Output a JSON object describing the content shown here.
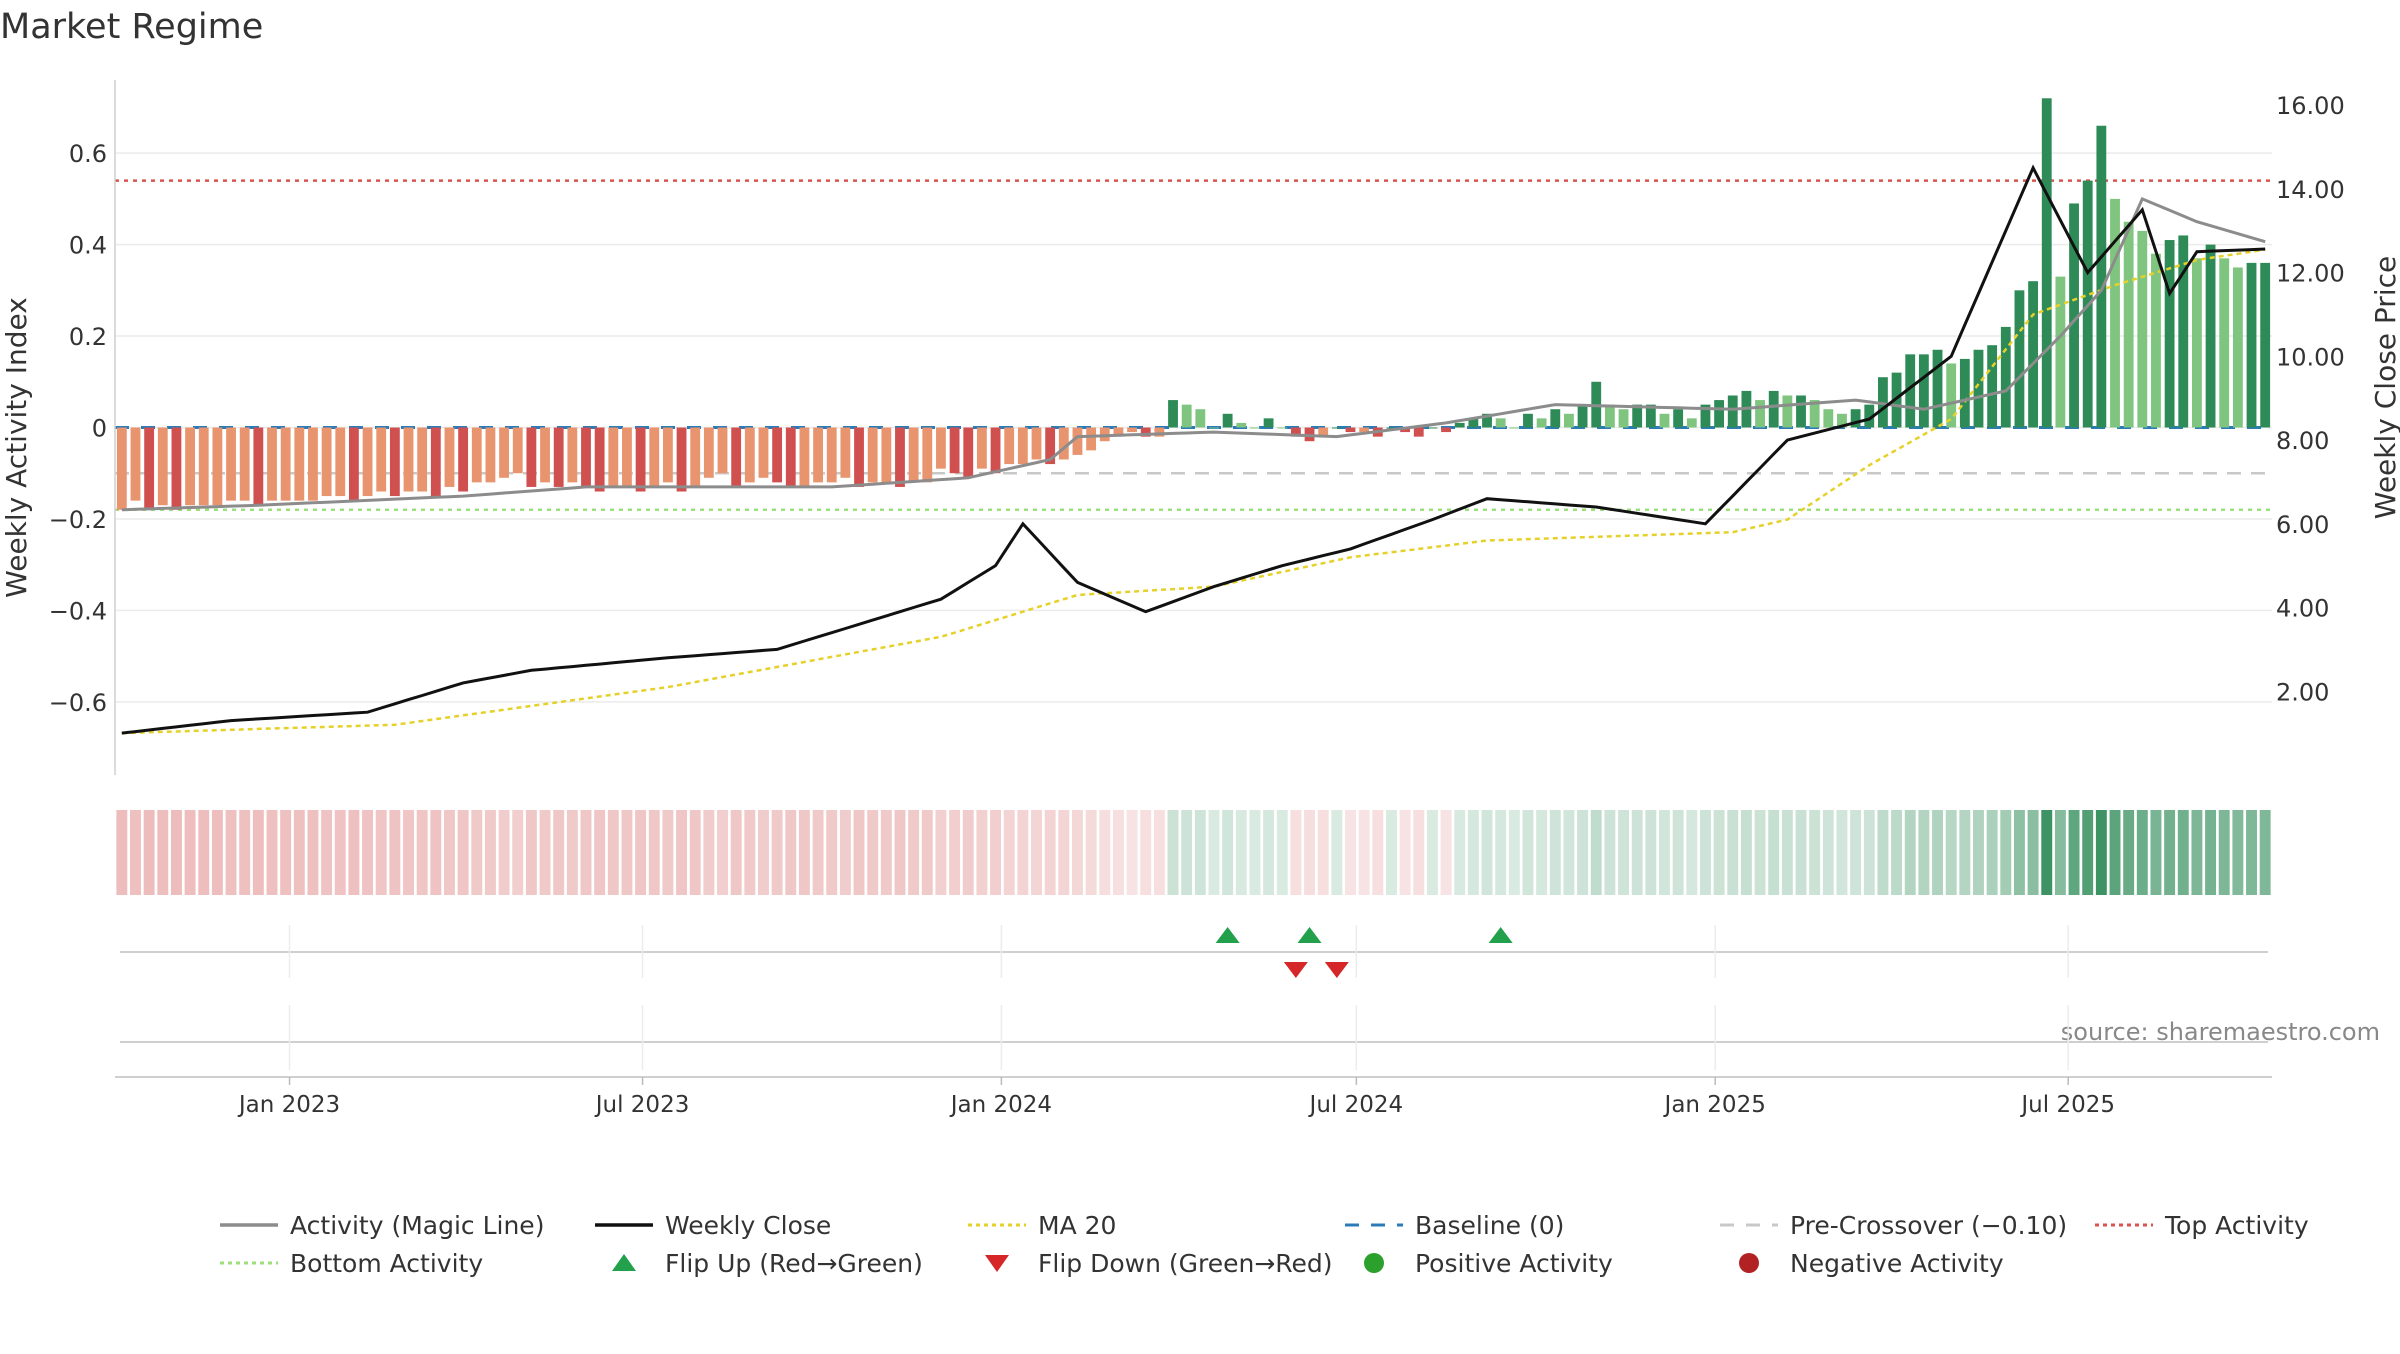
{
  "title": "Market Regime",
  "source_label": "source: sharemaestro.com",
  "colors": {
    "activity_line": "#8c8c8c",
    "close_line": "#111111",
    "ma_line": "#e6d12a",
    "baseline": "#2b7bb9",
    "pre_crossover": "#c8c8c8",
    "top_activity": "#d9534f",
    "bottom_activity": "#9be07a",
    "neg_dark": "#d05050",
    "neg_light": "#e8956f",
    "pos_dark": "#2e8b57",
    "pos_light": "#7fc47f",
    "flip_up": "#22a04b",
    "flip_down": "#d62728",
    "pos_dot": "#2ca02c",
    "neg_dot": "#b22222"
  },
  "chart_data": {
    "type": "bar+line",
    "title": "Market Regime",
    "xlabel": "",
    "ylabel_left": "Weekly Activity Index",
    "ylabel_right": "Weekly Close Price",
    "x_start": "2022-10-07",
    "x_step": "weekly",
    "x_ticks": [
      "Jan 2023",
      "Jul 2023",
      "Jan 2024",
      "Jul 2024",
      "Jan 2025",
      "Jul 2025"
    ],
    "x_tick_dates": [
      "2023-01-01",
      "2023-07-01",
      "2024-01-01",
      "2024-07-01",
      "2025-01-01",
      "2025-07-01"
    ],
    "ylim_left": [
      -0.76,
      0.76
    ],
    "yticks_left": [
      -0.6,
      -0.4,
      -0.2,
      0,
      0.2,
      0.4,
      0.6
    ],
    "ytick_labels_left": [
      "−0.6",
      "−0.4",
      "−0.2",
      "0",
      "0.2",
      "0.4",
      "0.6"
    ],
    "ylim_right": [
      0.0,
      16.6
    ],
    "yticks_right": [
      2,
      4,
      6,
      8,
      10,
      12,
      14,
      16
    ],
    "ytick_labels_right": [
      "2.00",
      "4.00",
      "6.00",
      "8.00",
      "10.00",
      "12.00",
      "14.00",
      "16.00"
    ],
    "reference_lines": {
      "baseline": 0,
      "pre_crossover": -0.1,
      "top_activity": 0.54,
      "bottom_activity": -0.18
    },
    "activity_anchors": [
      [
        0,
        -0.18
      ],
      [
        10,
        -0.17
      ],
      [
        25,
        -0.15
      ],
      [
        34,
        -0.13
      ],
      [
        52,
        -0.13
      ],
      [
        62,
        -0.11
      ],
      [
        68,
        -0.07
      ],
      [
        70,
        -0.02
      ],
      [
        80,
        -0.01
      ],
      [
        89,
        -0.02
      ],
      [
        97,
        0.01
      ],
      [
        105,
        0.05
      ],
      [
        118,
        0.04
      ],
      [
        127,
        0.06
      ],
      [
        132,
        0.04
      ],
      [
        138,
        0.08
      ],
      [
        142,
        0.2
      ],
      [
        145,
        0.3
      ],
      [
        148,
        0.5
      ],
      [
        152,
        0.45
      ],
      [
        160,
        0.38
      ]
    ],
    "close_anchors": [
      [
        0,
        1.0
      ],
      [
        8,
        1.3
      ],
      [
        18,
        1.5
      ],
      [
        25,
        2.2
      ],
      [
        30,
        2.5
      ],
      [
        40,
        2.8
      ],
      [
        48,
        3.0
      ],
      [
        56,
        3.8
      ],
      [
        60,
        4.2
      ],
      [
        64,
        5.0
      ],
      [
        66,
        6.0
      ],
      [
        70,
        4.6
      ],
      [
        75,
        3.9
      ],
      [
        80,
        4.5
      ],
      [
        85,
        5.0
      ],
      [
        90,
        5.4
      ],
      [
        96,
        6.1
      ],
      [
        100,
        6.6
      ],
      [
        108,
        6.4
      ],
      [
        116,
        6.0
      ],
      [
        122,
        8.0
      ],
      [
        128,
        8.5
      ],
      [
        134,
        10.0
      ],
      [
        140,
        14.5
      ],
      [
        144,
        12.0
      ],
      [
        148,
        13.5
      ],
      [
        150,
        11.5
      ],
      [
        152,
        12.5
      ],
      [
        160,
        12.6
      ]
    ],
    "ma_anchors": [
      [
        0,
        1.0
      ],
      [
        20,
        1.2
      ],
      [
        40,
        2.1
      ],
      [
        60,
        3.3
      ],
      [
        70,
        4.3
      ],
      [
        80,
        4.5
      ],
      [
        90,
        5.2
      ],
      [
        100,
        5.6
      ],
      [
        118,
        5.8
      ],
      [
        122,
        6.1
      ],
      [
        128,
        7.4
      ],
      [
        134,
        8.5
      ],
      [
        140,
        11.0
      ],
      [
        146,
        11.7
      ],
      [
        152,
        12.3
      ],
      [
        160,
        12.7
      ]
    ],
    "flip_up_weeks": [
      81,
      87,
      101
    ],
    "flip_down_weeks": [
      86,
      89
    ],
    "activity_bars": [
      -0.18,
      -0.16,
      -0.18,
      -0.17,
      -0.18,
      -0.17,
      -0.17,
      -0.17,
      -0.16,
      -0.16,
      -0.17,
      -0.16,
      -0.16,
      -0.16,
      -0.16,
      -0.15,
      -0.15,
      -0.16,
      -0.15,
      -0.14,
      -0.15,
      -0.14,
      -0.14,
      -0.15,
      -0.13,
      -0.14,
      -0.12,
      -0.12,
      -0.11,
      -0.1,
      -0.13,
      -0.12,
      -0.13,
      -0.12,
      -0.13,
      -0.14,
      -0.13,
      -0.13,
      -0.14,
      -0.13,
      -0.12,
      -0.14,
      -0.13,
      -0.11,
      -0.1,
      -0.13,
      -0.12,
      -0.11,
      -0.12,
      -0.13,
      -0.13,
      -0.12,
      -0.12,
      -0.11,
      -0.13,
      -0.12,
      -0.12,
      -0.13,
      -0.12,
      -0.12,
      -0.09,
      -0.1,
      -0.11,
      -0.09,
      -0.1,
      -0.08,
      -0.08,
      -0.07,
      -0.08,
      -0.07,
      -0.06,
      -0.05,
      -0.03,
      -0.02,
      -0.01,
      -0.02,
      -0.02,
      0.06,
      0.05,
      0.04,
      0.0,
      0.03,
      0.01,
      0.0,
      0.02,
      0.0,
      -0.02,
      -0.03,
      -0.02,
      0.0,
      -0.01,
      -0.01,
      -0.02,
      0.0,
      -0.01,
      -0.02,
      0.0,
      -0.01,
      0.01,
      0.02,
      0.03,
      0.02,
      0.0,
      0.03,
      0.02,
      0.04,
      0.03,
      0.05,
      0.1,
      0.05,
      0.04,
      0.05,
      0.05,
      0.03,
      0.04,
      0.02,
      0.05,
      0.06,
      0.07,
      0.08,
      0.06,
      0.08,
      0.07,
      0.07,
      0.06,
      0.04,
      0.03,
      0.04,
      0.05,
      0.11,
      0.12,
      0.16,
      0.16,
      0.17,
      0.14,
      0.15,
      0.17,
      0.18,
      0.22,
      0.3,
      0.32,
      0.72,
      0.33,
      0.49,
      0.54,
      0.66,
      0.5,
      0.45,
      0.43,
      0.38,
      0.41,
      0.42,
      0.37,
      0.4,
      0.37,
      0.35,
      0.36,
      0.36
    ]
  },
  "legend": [
    {
      "label": "Activity (Magic Line)",
      "marker": "line",
      "color": "#8c8c8c"
    },
    {
      "label": "Weekly Close",
      "marker": "line",
      "color": "#111111"
    },
    {
      "label": "MA 20",
      "marker": "dotted",
      "color": "#e6d12a"
    },
    {
      "label": "Baseline (0)",
      "marker": "dashed",
      "color": "#2b7bb9"
    },
    {
      "label": "Pre-Crossover (−0.10)",
      "marker": "dashed",
      "color": "#c8c8c8"
    },
    {
      "label": "Top Activity",
      "marker": "dotted",
      "color": "#d9534f"
    },
    {
      "label": "Bottom Activity",
      "marker": "dotted",
      "color": "#9be07a"
    },
    {
      "label": "Flip Up (Red→Green)",
      "marker": "triangle-up",
      "color": "#22a04b"
    },
    {
      "label": "Flip Down (Green→Red)",
      "marker": "triangle-down",
      "color": "#d62728"
    },
    {
      "label": "Positive Activity",
      "marker": "dot",
      "color": "#2ca02c"
    },
    {
      "label": "Negative Activity",
      "marker": "dot",
      "color": "#b22222"
    }
  ]
}
